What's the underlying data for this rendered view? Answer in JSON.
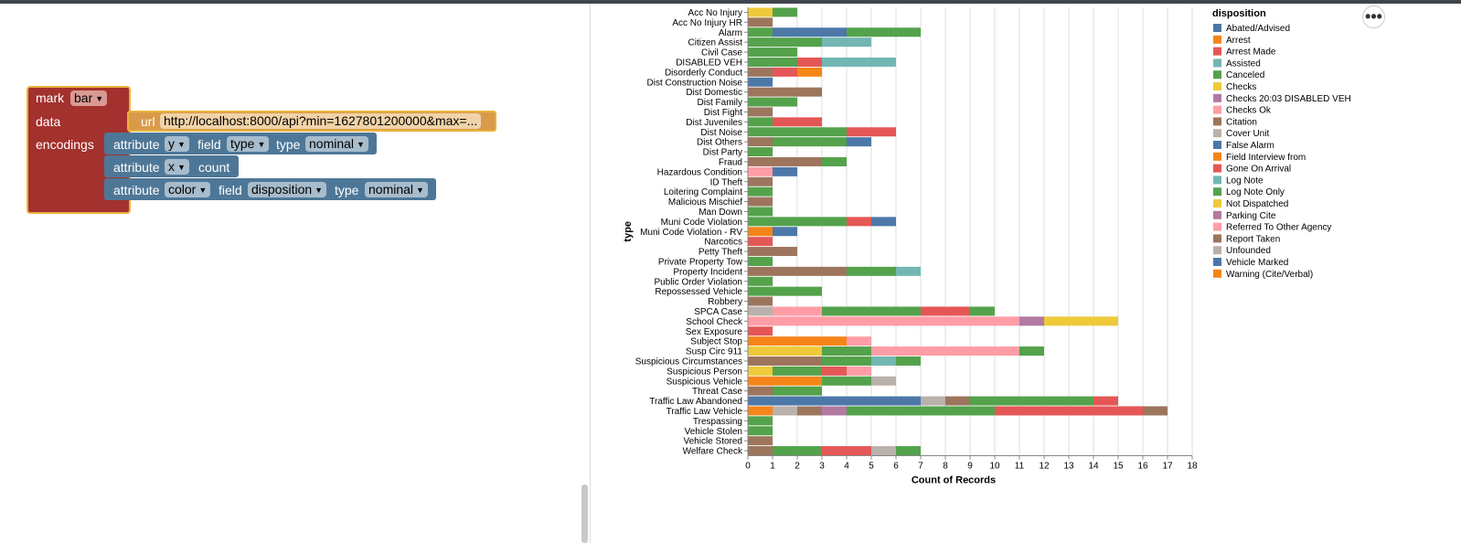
{
  "blocks": {
    "mark": {
      "label": "mark",
      "value": "bar"
    },
    "data": {
      "label": "data",
      "url_label": "url",
      "url_value": "http://localhost:8000/api?min=1627801200000&max=..."
    },
    "encodings": {
      "label": "encodings"
    },
    "attributes": [
      {
        "attr_label": "attribute",
        "attr_value": "y",
        "field_label": "field",
        "field_value": "type",
        "type_label": "type",
        "type_value": "nominal"
      },
      {
        "attr_label": "attribute",
        "attr_value": "x",
        "extra": "count"
      },
      {
        "attr_label": "attribute",
        "attr_value": "color",
        "field_label": "field",
        "field_value": "disposition",
        "type_label": "type",
        "type_value": "nominal"
      }
    ]
  },
  "menu": {
    "more_icon": "more-horizontal-icon",
    "glyph": "•••"
  },
  "colors": {
    "block_mark": "#a3312d",
    "block_data": "#d99a4a",
    "block_attr": "#4e7797",
    "block_border": "#e9b33f"
  },
  "chart_data": {
    "type": "bar",
    "orientation": "horizontal-stacked",
    "xlabel": "Count of Records",
    "ylabel": "type",
    "xlim": [
      0,
      18
    ],
    "x_ticks": [
      "0",
      "1",
      "2",
      "3",
      "4",
      "5",
      "6",
      "7",
      "8",
      "9",
      "10",
      "11",
      "12",
      "13",
      "14",
      "15",
      "16",
      "17",
      "18"
    ],
    "grid": true,
    "legend_position": "right",
    "legend": {
      "title": "disposition",
      "items": [
        {
          "name": "Abated/Advised",
          "color": "#4c78a8"
        },
        {
          "name": "Arrest",
          "color": "#f58518"
        },
        {
          "name": "Arrest Made",
          "color": "#e45756"
        },
        {
          "name": "Assisted",
          "color": "#72b7b2"
        },
        {
          "name": "Canceled",
          "color": "#54a24b"
        },
        {
          "name": "Checks",
          "color": "#eeca3b"
        },
        {
          "name": "Checks 20:03 DISABLED VEH",
          "color": "#b279a2"
        },
        {
          "name": "Checks Ok",
          "color": "#ff9da6"
        },
        {
          "name": "Citation",
          "color": "#9d755d"
        },
        {
          "name": "Cover Unit",
          "color": "#bab0ac"
        },
        {
          "name": "False Alarm",
          "color": "#4c78a8"
        },
        {
          "name": "Field Interview from",
          "color": "#f58518"
        },
        {
          "name": "Gone On Arrival",
          "color": "#e45756"
        },
        {
          "name": "Log Note",
          "color": "#72b7b2"
        },
        {
          "name": "Log Note Only",
          "color": "#54a24b"
        },
        {
          "name": "Not Dispatched",
          "color": "#eeca3b"
        },
        {
          "name": "Parking Cite",
          "color": "#b279a2"
        },
        {
          "name": "Referred To Other Agency",
          "color": "#ff9da6"
        },
        {
          "name": "Report Taken",
          "color": "#9d755d"
        },
        {
          "name": "Unfounded",
          "color": "#bab0ac"
        },
        {
          "name": "Vehicle Marked",
          "color": "#4c78a8"
        },
        {
          "name": "Warning (Cite/Verbal)",
          "color": "#f58518"
        }
      ]
    },
    "categories": [
      {
        "name": "Acc No Injury",
        "segments": [
          [
            "#eeca3b",
            1
          ],
          [
            "#54a24b",
            1
          ]
        ]
      },
      {
        "name": "Acc No Injury HR",
        "segments": [
          [
            "#9d755d",
            1
          ]
        ]
      },
      {
        "name": "Alarm",
        "segments": [
          [
            "#54a24b",
            1
          ],
          [
            "#4c78a8",
            3
          ],
          [
            "#54a24b",
            3
          ]
        ]
      },
      {
        "name": "Citizen Assist",
        "segments": [
          [
            "#54a24b",
            3
          ],
          [
            "#72b7b2",
            2
          ]
        ]
      },
      {
        "name": "Civil Case",
        "segments": [
          [
            "#54a24b",
            2
          ]
        ]
      },
      {
        "name": "DISABLED VEH",
        "segments": [
          [
            "#54a24b",
            2
          ],
          [
            "#e45756",
            1
          ],
          [
            "#72b7b2",
            3
          ]
        ]
      },
      {
        "name": "Disorderly Conduct",
        "segments": [
          [
            "#9d755d",
            1
          ],
          [
            "#e45756",
            1
          ],
          [
            "#f58518",
            1
          ]
        ]
      },
      {
        "name": "Dist Construction Noise",
        "segments": [
          [
            "#4c78a8",
            1
          ]
        ]
      },
      {
        "name": "Dist Domestic",
        "segments": [
          [
            "#9d755d",
            3
          ]
        ]
      },
      {
        "name": "Dist Family",
        "segments": [
          [
            "#54a24b",
            2
          ]
        ]
      },
      {
        "name": "Dist Fight",
        "segments": [
          [
            "#9d755d",
            1
          ]
        ]
      },
      {
        "name": "Dist Juveniles",
        "segments": [
          [
            "#54a24b",
            1
          ],
          [
            "#e45756",
            2
          ]
        ]
      },
      {
        "name": "Dist Noise",
        "segments": [
          [
            "#54a24b",
            4
          ],
          [
            "#e45756",
            2
          ]
        ]
      },
      {
        "name": "Dist Others",
        "segments": [
          [
            "#9d755d",
            1
          ],
          [
            "#54a24b",
            3
          ],
          [
            "#4c78a8",
            1
          ]
        ]
      },
      {
        "name": "Dist Party",
        "segments": [
          [
            "#54a24b",
            1
          ]
        ]
      },
      {
        "name": "Fraud",
        "segments": [
          [
            "#9d755d",
            3
          ],
          [
            "#54a24b",
            1
          ]
        ]
      },
      {
        "name": "Hazardous Condition",
        "segments": [
          [
            "#ff9da6",
            1
          ],
          [
            "#4c78a8",
            1
          ]
        ]
      },
      {
        "name": "ID Theft",
        "segments": [
          [
            "#9d755d",
            1
          ]
        ]
      },
      {
        "name": "Loitering Complaint",
        "segments": [
          [
            "#54a24b",
            1
          ]
        ]
      },
      {
        "name": "Malicious Mischief",
        "segments": [
          [
            "#9d755d",
            1
          ]
        ]
      },
      {
        "name": "Man Down",
        "segments": [
          [
            "#54a24b",
            1
          ]
        ]
      },
      {
        "name": "Muni Code Violation",
        "segments": [
          [
            "#54a24b",
            4
          ],
          [
            "#e45756",
            1
          ],
          [
            "#4c78a8",
            1
          ]
        ]
      },
      {
        "name": "Muni Code Violation - RV",
        "segments": [
          [
            "#f58518",
            1
          ],
          [
            "#4c78a8",
            1
          ]
        ]
      },
      {
        "name": "Narcotics",
        "segments": [
          [
            "#e45756",
            1
          ]
        ]
      },
      {
        "name": "Petty Theft",
        "segments": [
          [
            "#9d755d",
            2
          ]
        ]
      },
      {
        "name": "Private Property Tow",
        "segments": [
          [
            "#54a24b",
            1
          ]
        ]
      },
      {
        "name": "Property Incident",
        "segments": [
          [
            "#9d755d",
            4
          ],
          [
            "#54a24b",
            2
          ],
          [
            "#72b7b2",
            1
          ]
        ]
      },
      {
        "name": "Public Order Violation",
        "segments": [
          [
            "#54a24b",
            1
          ]
        ]
      },
      {
        "name": "Repossessed Vehicle",
        "segments": [
          [
            "#54a24b",
            3
          ]
        ]
      },
      {
        "name": "Robbery",
        "segments": [
          [
            "#9d755d",
            1
          ]
        ]
      },
      {
        "name": "SPCA Case",
        "segments": [
          [
            "#bab0ac",
            1
          ],
          [
            "#ff9da6",
            2
          ],
          [
            "#54a24b",
            4
          ],
          [
            "#e45756",
            2
          ],
          [
            "#54a24b",
            1
          ]
        ]
      },
      {
        "name": "School Check",
        "segments": [
          [
            "#ff9da6",
            11
          ],
          [
            "#b279a2",
            1
          ],
          [
            "#eeca3b",
            3
          ]
        ]
      },
      {
        "name": "Sex Exposure",
        "segments": [
          [
            "#e45756",
            1
          ]
        ]
      },
      {
        "name": "Subject Stop",
        "segments": [
          [
            "#f58518",
            4
          ],
          [
            "#ff9da6",
            1
          ]
        ]
      },
      {
        "name": "Susp Circ 911",
        "segments": [
          [
            "#eeca3b",
            3
          ],
          [
            "#54a24b",
            2
          ],
          [
            "#ff9da6",
            6
          ],
          [
            "#54a24b",
            1
          ]
        ]
      },
      {
        "name": "Suspicious Circumstances",
        "segments": [
          [
            "#9d755d",
            3
          ],
          [
            "#54a24b",
            2
          ],
          [
            "#72b7b2",
            1
          ],
          [
            "#54a24b",
            1
          ]
        ]
      },
      {
        "name": "Suspicious Person",
        "segments": [
          [
            "#eeca3b",
            1
          ],
          [
            "#54a24b",
            2
          ],
          [
            "#e45756",
            1
          ],
          [
            "#ff9da6",
            1
          ]
        ]
      },
      {
        "name": "Suspicious Vehicle",
        "segments": [
          [
            "#f58518",
            3
          ],
          [
            "#54a24b",
            2
          ],
          [
            "#bab0ac",
            1
          ]
        ]
      },
      {
        "name": "Threat Case",
        "segments": [
          [
            "#9d755d",
            1
          ],
          [
            "#54a24b",
            2
          ]
        ]
      },
      {
        "name": "Traffic Law Abandoned",
        "segments": [
          [
            "#4c78a8",
            7
          ],
          [
            "#bab0ac",
            1
          ],
          [
            "#9d755d",
            1
          ],
          [
            "#54a24b",
            5
          ],
          [
            "#e45756",
            1
          ]
        ]
      },
      {
        "name": "Traffic Law Vehicle",
        "segments": [
          [
            "#f58518",
            1
          ],
          [
            "#bab0ac",
            1
          ],
          [
            "#9d755d",
            1
          ],
          [
            "#b279a2",
            1
          ],
          [
            "#54a24b",
            6
          ],
          [
            "#e45756",
            6
          ],
          [
            "#9d755d",
            1
          ]
        ]
      },
      {
        "name": "Trespassing",
        "segments": [
          [
            "#54a24b",
            1
          ]
        ]
      },
      {
        "name": "Vehicle Stolen",
        "segments": [
          [
            "#54a24b",
            1
          ]
        ]
      },
      {
        "name": "Vehicle Stored",
        "segments": [
          [
            "#9d755d",
            1
          ]
        ]
      },
      {
        "name": "Welfare Check",
        "segments": [
          [
            "#9d755d",
            1
          ],
          [
            "#54a24b",
            2
          ],
          [
            "#e45756",
            2
          ],
          [
            "#bab0ac",
            1
          ],
          [
            "#54a24b",
            1
          ]
        ]
      }
    ]
  }
}
